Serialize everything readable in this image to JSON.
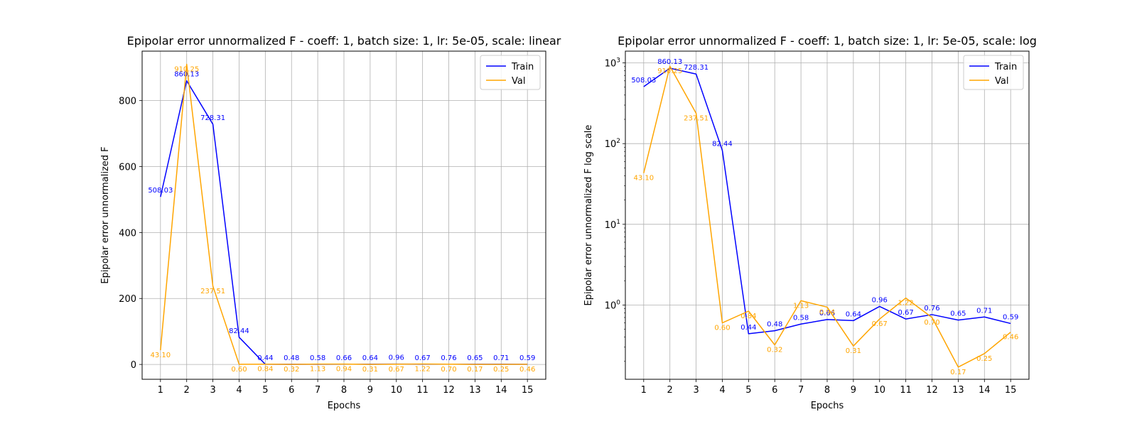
{
  "chart_data": [
    {
      "type": "line",
      "title": "Epipolar error unnormalized F - coeff: 1, batch size: 1, lr: 5e-05, scale: linear",
      "xlabel": "Epochs",
      "ylabel": "Epipolar error unnormalized F",
      "yscale": "linear",
      "x": [
        1,
        2,
        3,
        4,
        5,
        6,
        7,
        8,
        9,
        10,
        11,
        12,
        13,
        14,
        15
      ],
      "xlim": [
        0.3,
        15.7
      ],
      "ylim": [
        -45,
        950
      ],
      "yticks": [
        0,
        200,
        400,
        600,
        800
      ],
      "ytick_labels": [
        "0",
        "200",
        "400",
        "600",
        "800"
      ],
      "grid": true,
      "legend_position": "top-right",
      "series": [
        {
          "name": "Train",
          "color": "#0000ff",
          "values": [
            508.03,
            860.13,
            728.31,
            82.44,
            0.44,
            0.48,
            0.58,
            0.66,
            0.64,
            0.96,
            0.67,
            0.76,
            0.65,
            0.71,
            0.59
          ],
          "labels": [
            "508.03",
            "860.13",
            "728.31",
            "82.44",
            "0.44",
            "0.48",
            "0.58",
            "0.66",
            "0.64",
            "0.96",
            "0.67",
            "0.76",
            "0.65",
            "0.71",
            "0.59"
          ]
        },
        {
          "name": "Val",
          "color": "#ffa500",
          "values": [
            43.1,
            910.25,
            237.51,
            0.6,
            0.84,
            0.32,
            1.13,
            0.94,
            0.31,
            0.67,
            1.22,
            0.7,
            0.17,
            0.25,
            0.46
          ],
          "labels": [
            "43.10",
            "910.25",
            "237.51",
            "0.60",
            "0.84",
            "0.32",
            "1.13",
            "0.94",
            "0.31",
            "0.67",
            "1.22",
            "0.70",
            "0.17",
            "0.25",
            "0.46"
          ]
        }
      ]
    },
    {
      "type": "line",
      "title": "Epipolar error unnormalized F - coeff: 1, batch size: 1, lr: 5e-05, scale: log",
      "xlabel": "Epochs",
      "ylabel": "Epipolar error unnormalized F log scale",
      "yscale": "log",
      "x": [
        1,
        2,
        3,
        4,
        5,
        6,
        7,
        8,
        9,
        10,
        11,
        12,
        13,
        14,
        15
      ],
      "xlim": [
        0.3,
        15.7
      ],
      "ylim": [
        0.12,
        1400
      ],
      "yticks": [
        1,
        10,
        100,
        1000
      ],
      "ytick_labels": [
        "10^0",
        "10^1",
        "10^2",
        "10^3"
      ],
      "grid": true,
      "legend_position": "top-right",
      "series": [
        {
          "name": "Train",
          "color": "#0000ff",
          "values": [
            508.03,
            860.13,
            728.31,
            82.44,
            0.44,
            0.48,
            0.58,
            0.66,
            0.64,
            0.96,
            0.67,
            0.76,
            0.65,
            0.71,
            0.59
          ],
          "labels": [
            "508.03",
            "860.13",
            "728.31",
            "82.44",
            "0.44",
            "0.48",
            "0.58",
            "0.66",
            "0.64",
            "0.96",
            "0.67",
            "0.76",
            "0.65",
            "0.71",
            "0.59"
          ]
        },
        {
          "name": "Val",
          "color": "#ffa500",
          "values": [
            43.1,
            910.25,
            237.51,
            0.6,
            0.84,
            0.32,
            1.13,
            0.94,
            0.31,
            0.67,
            1.22,
            0.7,
            0.17,
            0.25,
            0.46
          ],
          "labels": [
            "43.10",
            "910.25",
            "237.51",
            "0.60",
            "0.84",
            "0.32",
            "1.13",
            "0.94",
            "0.31",
            "0.67",
            "1.22",
            "0.70",
            "0.17",
            "0.25",
            "0.46"
          ]
        }
      ]
    }
  ]
}
